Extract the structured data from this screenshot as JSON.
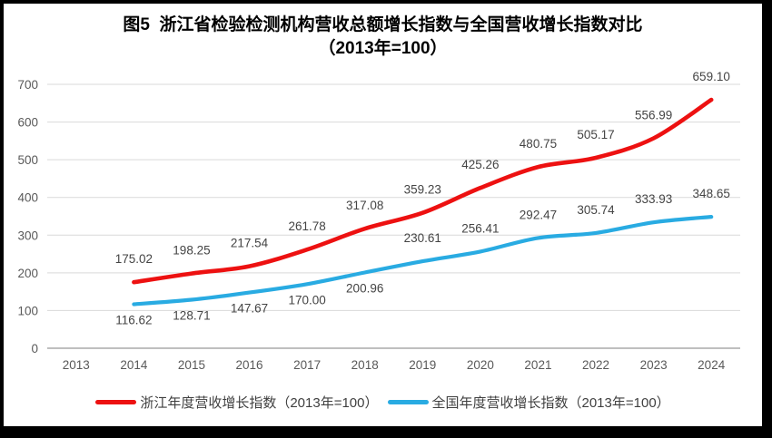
{
  "title": {
    "line1": "图5  浙江省检验检测机构营收总额增长指数与全国营收增长指数对比",
    "line2": "（2013年=100）"
  },
  "chart_data": {
    "type": "line",
    "categories": [
      "2013",
      "2014",
      "2015",
      "2016",
      "2017",
      "2018",
      "2019",
      "2020",
      "2021",
      "2022",
      "2023",
      "2024"
    ],
    "series": [
      {
        "name": "浙江年度营收增长指数（2013年=100）",
        "color": "#ED1111",
        "stroke_width": 4.6,
        "values": [
          null,
          175.02,
          198.25,
          217.54,
          261.78,
          317.08,
          359.23,
          425.26,
          480.75,
          505.17,
          556.99,
          659.1
        ],
        "label_side": "above"
      },
      {
        "name": "全国年度营收增长指数（2013年=100）",
        "color": "#29ABE2",
        "stroke_width": 4.2,
        "values": [
          null,
          116.62,
          128.71,
          147.67,
          170.0,
          200.96,
          230.61,
          256.41,
          292.47,
          305.74,
          333.93,
          348.65
        ],
        "label_side": "above",
        "label_sides": [
          null,
          "below",
          "below",
          "below",
          "below",
          "below",
          "above",
          "above",
          "above",
          "above",
          "above",
          "above"
        ]
      }
    ],
    "ylim": [
      0,
      700
    ],
    "ytick_step": 100,
    "grid": "horizontal-gridlines",
    "legend_position": "bottom",
    "data_labels": "two-decimal",
    "smoothed_lines": true
  },
  "colors": {
    "background": "#FFFFFF",
    "frame_border": "#000000",
    "gridline": "#D9D9D9",
    "axis_line": "#BFBFBF",
    "tick_label": "#595959",
    "data_label": "#444444",
    "legend_text": "#3F3F3F",
    "title_text": "#000000"
  }
}
